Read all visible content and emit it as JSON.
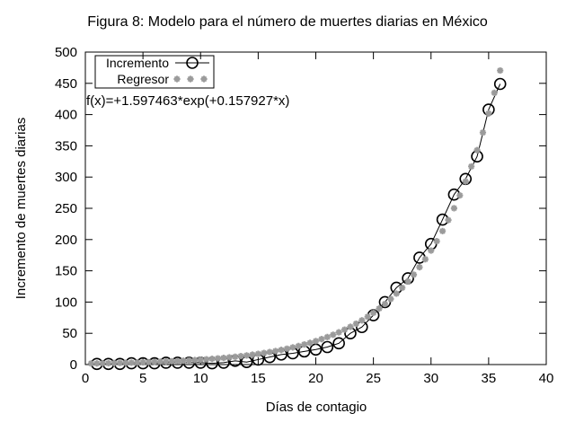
{
  "background": "#ffffff",
  "chart_data": {
    "type": "line",
    "title": "Figura 8: Modelo para el número de muertes diarias en México",
    "xlabel": "Días de contagio",
    "ylabel": "Incremento de muertes diarias",
    "xlim": [
      0,
      40
    ],
    "ylim": [
      0,
      500
    ],
    "xticks": [
      0,
      5,
      10,
      15,
      20,
      25,
      30,
      35,
      40
    ],
    "yticks": [
      0,
      50,
      100,
      150,
      200,
      250,
      300,
      350,
      400,
      450,
      500
    ],
    "grid": "off",
    "legend_position": "top-left",
    "annotation": "f(x)=+1.597463*exp(+0.157927*x)",
    "series": [
      {
        "name": "Incremento",
        "style": "line-with-open-circles",
        "color": "#000000",
        "x": [
          1,
          2,
          3,
          4,
          5,
          6,
          7,
          8,
          9,
          10,
          11,
          12,
          13,
          14,
          15,
          16,
          17,
          18,
          19,
          20,
          21,
          22,
          23,
          24,
          25,
          26,
          27,
          28,
          29,
          30,
          31,
          32,
          33,
          34,
          35,
          36
        ],
        "values": [
          1,
          1,
          1,
          2,
          2,
          2,
          3,
          3,
          3,
          3,
          2,
          3,
          6,
          4,
          8,
          12,
          16,
          18,
          21,
          24,
          28,
          34,
          50,
          60,
          79,
          100,
          123,
          138,
          171,
          193,
          232,
          272,
          297,
          333,
          408,
          449
        ]
      },
      {
        "name": "Regresor",
        "style": "asterisk-points",
        "color": "#9b9b9b",
        "fit": {
          "a": 1.597463,
          "b": 0.157927,
          "x_start": 0.5,
          "x_end": 36,
          "x_step": 0.5
        }
      }
    ]
  }
}
